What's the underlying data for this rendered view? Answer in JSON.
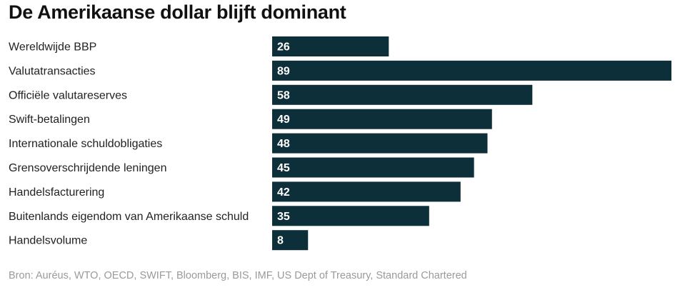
{
  "title": "De Amerikaanse dollar blijft dominant",
  "source": "Bron: Auréus, WTO, OECD, SWIFT, Bloomberg, BIS, IMF, US Dept of Treasury, Standard Chartered",
  "colors": {
    "bar": "#0d2f3a",
    "value_text": "#ffffff",
    "label_text": "#222222"
  },
  "chart_data": {
    "type": "bar",
    "orientation": "horizontal",
    "categories": [
      "Wereldwijde BBP",
      "Valutatransacties",
      "Officiële valutareserves",
      "Swift-betalingen",
      "Internationale schuldobligaties",
      "Grensoverschrijdende leningen",
      "Handelsfacturering",
      "Buitenlands eigendom van Amerikaanse schuld",
      "Handelsvolume"
    ],
    "values": [
      26,
      89,
      58,
      49,
      48,
      45,
      42,
      35,
      8
    ],
    "data_labels": [
      "26",
      "89",
      "58",
      "49",
      "48",
      "45",
      "42",
      "35",
      "8"
    ],
    "xlim": [
      0,
      89
    ],
    "grid": false,
    "legend": "none"
  }
}
